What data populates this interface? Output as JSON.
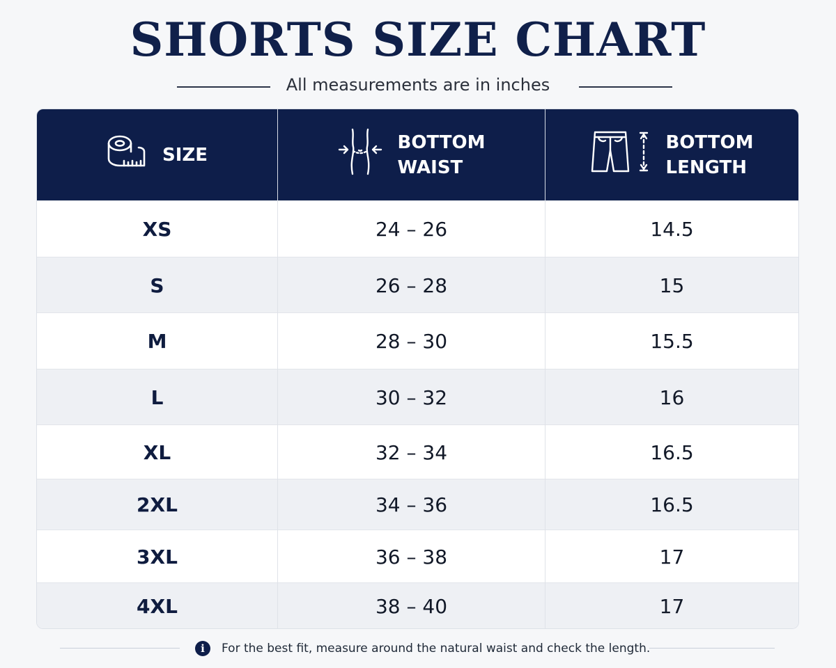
{
  "title": "SHORTS SIZE CHART",
  "subtitle": "All measurements are in inches",
  "colors": {
    "header_bg": "#0e1e4a",
    "title_color": "#10204a",
    "row_alt_bg": "#eef0f4",
    "page_bg": "#f6f7f9"
  },
  "table": {
    "headers": [
      {
        "label": "SIZE",
        "icon": "measuring-tape-icon"
      },
      {
        "label": "BOTTOM\nWAIST",
        "icon": "waist-measure-icon"
      },
      {
        "label": "BOTTOM\nLENGTH",
        "icon": "shorts-length-icon"
      }
    ],
    "rows": [
      {
        "size": "XS",
        "waist": "24 – 26",
        "length": "14.5"
      },
      {
        "size": "S",
        "waist": "26 – 28",
        "length": "15"
      },
      {
        "size": "M",
        "waist": "28 – 30",
        "length": "15.5"
      },
      {
        "size": "L",
        "waist": "30 – 32",
        "length": "16"
      },
      {
        "size": "XL",
        "waist": "32 – 34",
        "length": "16.5"
      },
      {
        "size": "2XL",
        "waist": "34 – 36",
        "length": "16.5"
      },
      {
        "size": "3XL",
        "waist": "36 – 38",
        "length": "17"
      },
      {
        "size": "4XL",
        "waist": "38 – 40",
        "length": "17"
      }
    ]
  },
  "footer": {
    "icon": "info-icon",
    "info_glyph": "i",
    "note": "For the best fit, measure around the natural waist and check the length."
  }
}
